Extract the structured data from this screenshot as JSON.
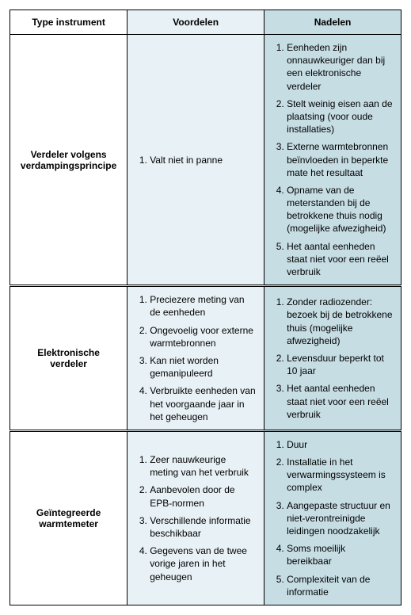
{
  "colors": {
    "header_adv_bg": "#e8f1f5",
    "header_dis_bg": "#c6dde4",
    "cell_adv_bg": "#e8f1f5",
    "cell_dis_bg": "#c6dde4",
    "border": "#000000",
    "text": "#000000"
  },
  "fontsize_header": 12,
  "fontsize_body": 12,
  "headers": {
    "type": "Type instrument",
    "adv": "Voordelen",
    "dis": "Nadelen"
  },
  "rows": [
    {
      "type": "Verdeler volgens verdampingsprincipe",
      "adv": [
        "Valt niet in panne"
      ],
      "dis": [
        "Eenheden zijn onnauwkeuriger dan bij een elektronische verdeler",
        "Stelt weinig eisen aan de plaatsing (voor oude installaties)",
        "Externe warmtebronnen beïnvloeden in beperkte mate het resultaat",
        "Opname van de meterstanden bij de betrokkene thuis nodig (mogelijke afwezigheid)",
        "Het aantal eenheden staat niet voor een reëel verbruik"
      ]
    },
    {
      "type": "Elektronische verdeler",
      "adv": [
        "Preciezere meting van de eenheden",
        "Ongevoelig voor externe warmtebronnen",
        "Kan niet worden gemanipuleerd",
        "Verbruikte eenheden van het voorgaande jaar in het geheugen"
      ],
      "dis": [
        "Zonder radiozender: bezoek bij de betrokkene thuis (mogelijke afwezigheid)",
        "Levensduur beperkt tot 10 jaar",
        "Het aantal eenheden staat niet voor een reëel verbruik"
      ]
    },
    {
      "type": "Geïntegreerde warmtemeter",
      "adv": [
        "Zeer nauwkeurige meting van het verbruik",
        "Aanbevolen door de EPB-normen",
        "Verschillende informatie beschikbaar",
        "Gegevens van de twee vorige jaren in het geheugen"
      ],
      "dis": [
        "Duur",
        "Installatie in het verwarmingssysteem is complex",
        "Aangepaste structuur en niet-verontreinigde leidingen noodzakelijk",
        "Soms moeilijk bereikbaar",
        "Complexiteit van de informatie"
      ]
    }
  ]
}
